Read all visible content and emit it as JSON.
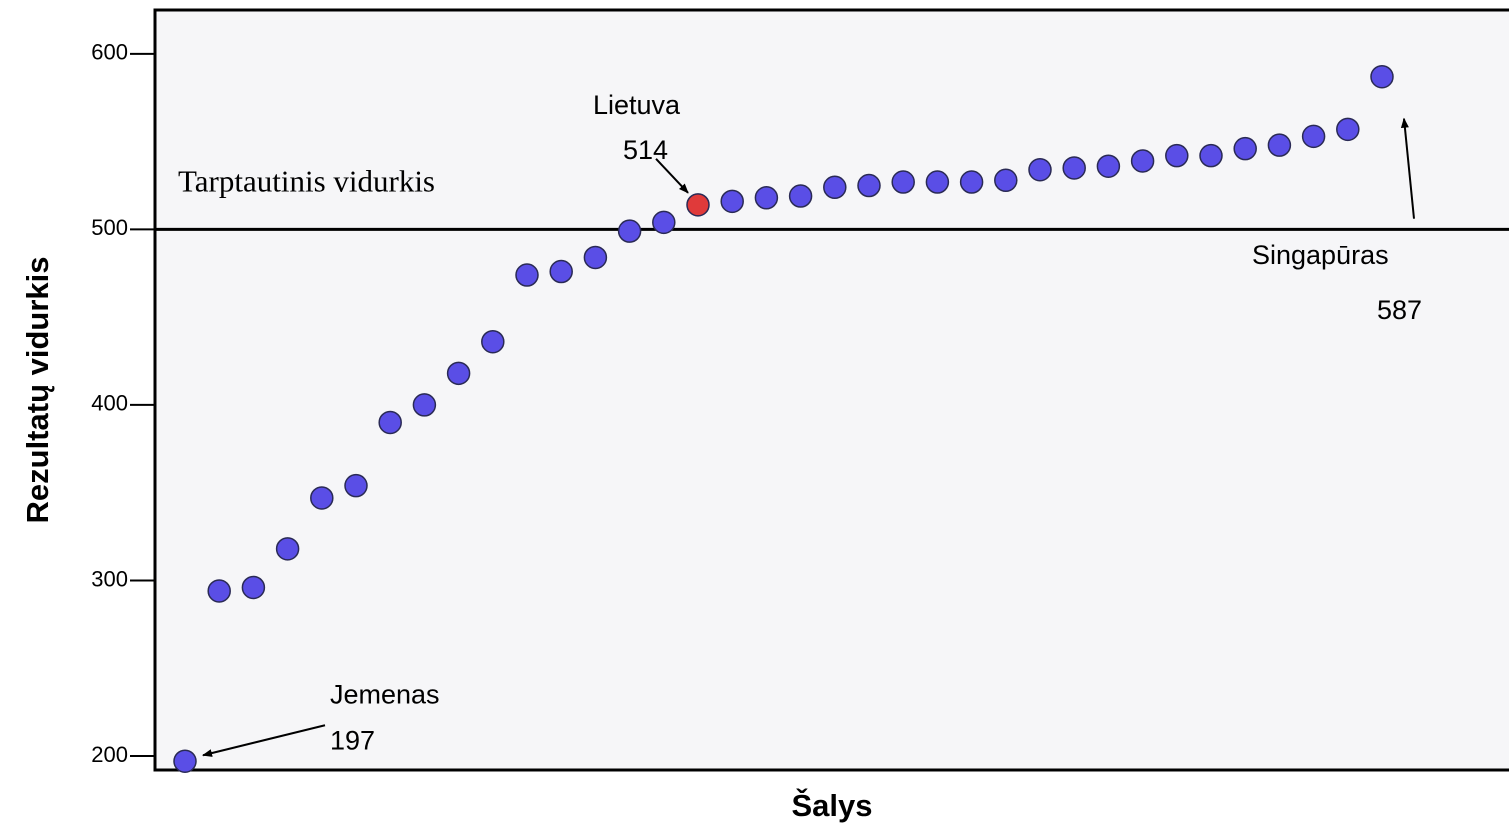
{
  "chart_data": {
    "type": "scatter",
    "y_label": "Rezultatų vidurkis",
    "x_label": "Šalys",
    "categories": [
      null,
      null,
      null,
      null,
      null,
      null,
      null,
      null,
      null,
      null,
      null,
      null,
      null,
      null,
      null,
      null,
      null,
      null,
      null,
      null,
      null,
      null,
      null,
      null,
      null,
      null,
      null,
      null,
      null,
      null,
      null,
      null,
      null,
      null,
      null,
      null
    ],
    "values": [
      197,
      294,
      296,
      318,
      347,
      354,
      390,
      400,
      418,
      436,
      474,
      476,
      484,
      499,
      504,
      514,
      516,
      518,
      519,
      524,
      525,
      527,
      527,
      527,
      528,
      534,
      535,
      536,
      539,
      542,
      542,
      546,
      548,
      553,
      557,
      587
    ],
    "colors": [
      "#5a4ee6",
      "#5a4ee6",
      "#5a4ee6",
      "#5a4ee6",
      "#5a4ee6",
      "#5a4ee6",
      "#5a4ee6",
      "#5a4ee6",
      "#5a4ee6",
      "#5a4ee6",
      "#5a4ee6",
      "#5a4ee6",
      "#5a4ee6",
      "#5a4ee6",
      "#5a4ee6",
      "#e03a3a",
      "#5a4ee6",
      "#5a4ee6",
      "#5a4ee6",
      "#5a4ee6",
      "#5a4ee6",
      "#5a4ee6",
      "#5a4ee6",
      "#5a4ee6",
      "#5a4ee6",
      "#5a4ee6",
      "#5a4ee6",
      "#5a4ee6",
      "#5a4ee6",
      "#5a4ee6",
      "#5a4ee6",
      "#5a4ee6",
      "#5a4ee6",
      "#5a4ee6",
      "#5a4ee6",
      "#5a4ee6"
    ],
    "point_names": [
      "Jemenas",
      null,
      null,
      null,
      null,
      null,
      null,
      null,
      null,
      null,
      null,
      null,
      null,
      null,
      null,
      "Lietuva",
      null,
      null,
      null,
      null,
      null,
      null,
      null,
      null,
      null,
      null,
      null,
      null,
      null,
      null,
      null,
      null,
      null,
      null,
      null,
      "Singapūras"
    ],
    "value_labels": [
      "197",
      null,
      null,
      null,
      null,
      null,
      null,
      null,
      null,
      null,
      null,
      null,
      null,
      null,
      null,
      "514",
      null,
      null,
      null,
      null,
      null,
      null,
      null,
      null,
      null,
      null,
      null,
      null,
      null,
      null,
      null,
      null,
      null,
      null,
      null,
      "587"
    ],
    "reference_line": {
      "value": 500,
      "label": "Tarptautinis vidurkis"
    },
    "ylim": [
      192,
      625
    ],
    "yticks": [
      200,
      300,
      400,
      500,
      600
    ]
  }
}
